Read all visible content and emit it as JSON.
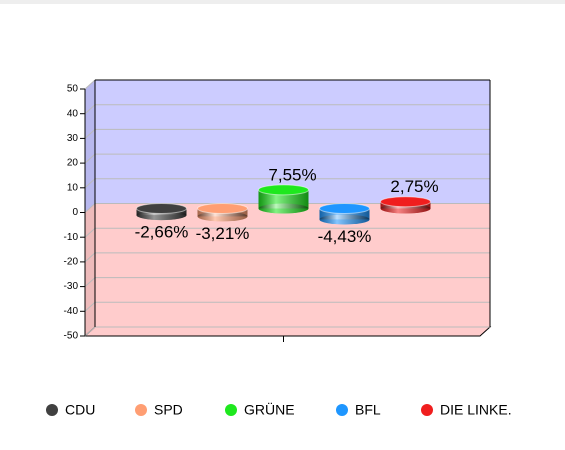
{
  "chart_data": {
    "type": "bar",
    "categories": [
      null
    ],
    "series": [
      {
        "name": "CDU",
        "color": "#404040",
        "values": [
          -2.66
        ],
        "value_labels": [
          "-2,66%"
        ]
      },
      {
        "name": "SPD",
        "color": "#ff9e73",
        "values": [
          -3.21
        ],
        "value_labels": [
          "-3,21%"
        ]
      },
      {
        "name": "GRÜNE",
        "color": "#1ee81e",
        "values": [
          7.55
        ],
        "value_labels": [
          "7,55%"
        ]
      },
      {
        "name": "BFL",
        "color": "#1e96ff",
        "values": [
          -4.43
        ],
        "value_labels": [
          "-4,43%"
        ]
      },
      {
        "name": "DIE LINKE.",
        "color": "#f01e1e",
        "values": [
          2.75
        ],
        "value_labels": [
          "2,75%"
        ]
      }
    ],
    "ylim": [
      -50,
      50
    ],
    "yticks": [
      -50,
      -40,
      -30,
      -20,
      -10,
      0,
      10,
      20,
      30,
      40,
      50
    ],
    "grid": true
  }
}
